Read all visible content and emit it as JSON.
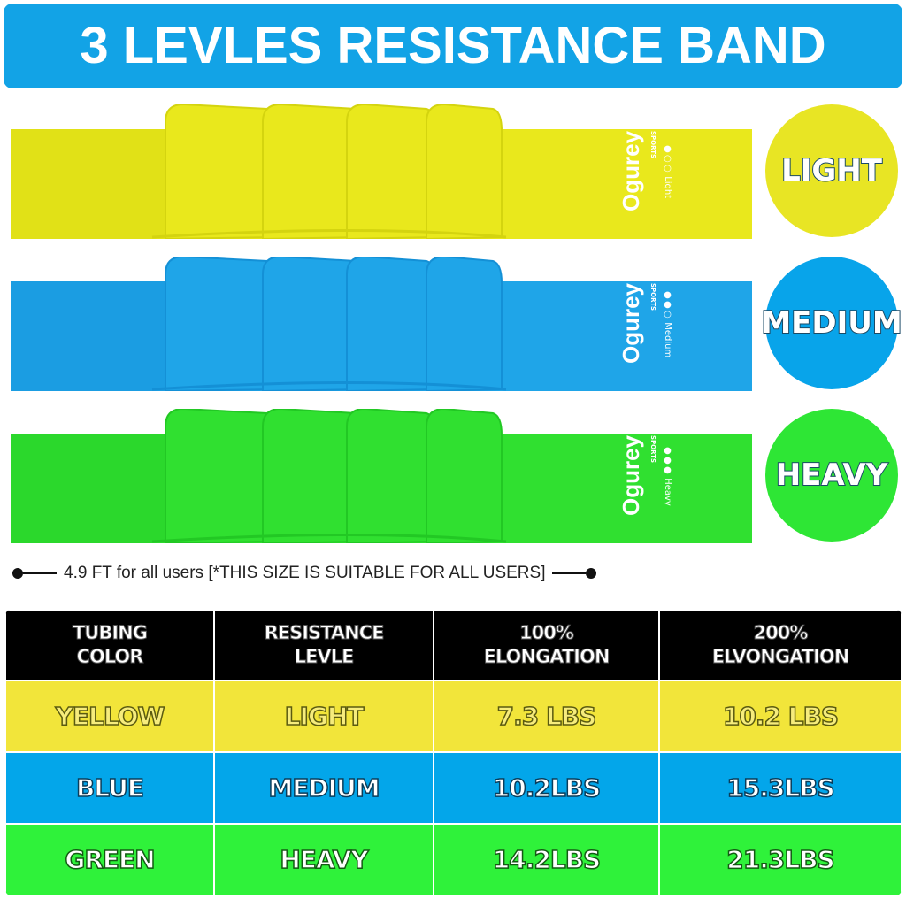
{
  "title": "3 LEVLES RESISTANCE BAND",
  "bands": [
    {
      "color": "#e9e81c",
      "shade": "#d4d40f",
      "brand": "Ogurey",
      "sub": "SPORTS",
      "level_text": "Light",
      "badge": "LIGHT",
      "badge_color": "#e8e524"
    },
    {
      "color": "#1fa5e8",
      "shade": "#1490d6",
      "brand": "Ogurey",
      "sub": "SPORTS",
      "level_text": "Medium",
      "badge": "MEDIUM",
      "badge_color": "#08a4ea"
    },
    {
      "color": "#30e030",
      "shade": "#22c824",
      "brand": "Ogurey",
      "sub": "SPORTS",
      "level_text": "Heavy",
      "badge": "HEAVY",
      "badge_color": "#2ee635"
    }
  ],
  "size_note": "4.9 FT for all users [*THIS SIZE IS SUITABLE FOR ALL USERS]",
  "table": {
    "headers": [
      [
        "TUBING",
        "COLOR"
      ],
      [
        "RESISTANCE",
        "LEVLE"
      ],
      [
        "100%",
        "ELONGATION"
      ],
      [
        "200%",
        "ELVONGATION"
      ]
    ],
    "rows": [
      [
        "YELLOW",
        "LIGHT",
        "7.3 LBS",
        "10.2 LBS"
      ],
      [
        "BLUE",
        "MEDIUM",
        "10.2LBS",
        "15.3LBS"
      ],
      [
        "GREEN",
        "HEAVY",
        "14.2LBS",
        "21.3LBS"
      ]
    ]
  }
}
